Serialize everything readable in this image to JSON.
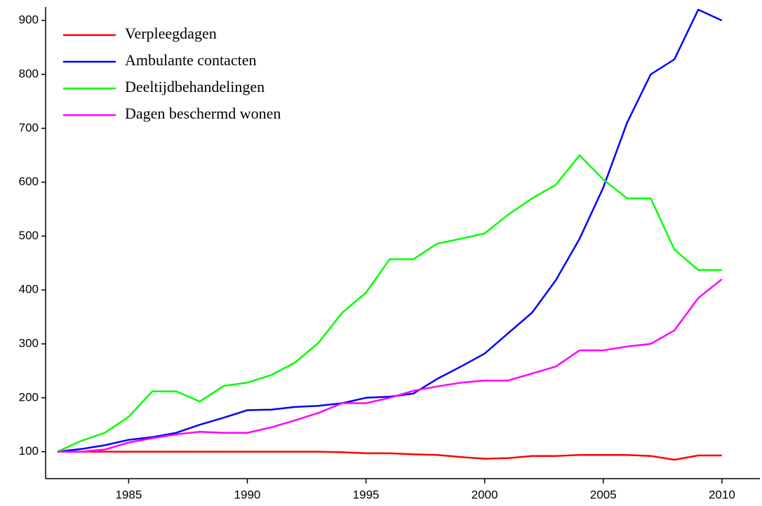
{
  "chart_data": {
    "type": "line",
    "x": [
      1982,
      1983,
      1984,
      1985,
      1986,
      1987,
      1988,
      1989,
      1990,
      1991,
      1992,
      1993,
      1994,
      1995,
      1996,
      1997,
      1998,
      1999,
      2000,
      2001,
      2002,
      2003,
      2004,
      2005,
      2006,
      2007,
      2008,
      2009,
      2010
    ],
    "series": [
      {
        "name": "Verpleegdagen",
        "color": "#ff0000",
        "values": [
          100,
          100,
          100,
          100,
          100,
          100,
          100,
          100,
          100,
          100,
          100,
          100,
          99,
          97,
          97,
          95,
          94,
          90,
          87,
          88,
          92,
          92,
          94,
          94,
          94,
          92,
          85,
          93,
          93
        ]
      },
      {
        "name": "Ambulante contacten",
        "color": "#0000ff",
        "values": [
          100,
          105,
          112,
          122,
          127,
          135,
          150,
          163,
          177,
          178,
          183,
          185,
          190,
          200,
          202,
          208,
          235,
          258,
          282,
          320,
          358,
          418,
          495,
          590,
          710,
          800,
          828,
          920,
          900
        ]
      },
      {
        "name": "Deeltijdbehandelingen",
        "color": "#00ff00",
        "values": [
          100,
          120,
          135,
          165,
          212,
          212,
          193,
          222,
          228,
          242,
          265,
          302,
          358,
          395,
          457,
          457,
          486,
          495,
          505,
          540,
          570,
          595,
          650,
          605,
          570,
          570,
          475,
          437,
          437
        ]
      },
      {
        "name": "Dagen beschermd wonen",
        "color": "#ff00ff",
        "values": [
          100,
          100,
          104,
          117,
          125,
          132,
          137,
          135,
          135,
          145,
          158,
          172,
          190,
          190,
          200,
          213,
          221,
          228,
          232,
          232,
          245,
          258,
          288,
          288,
          295,
          300,
          325,
          385,
          420
        ]
      }
    ],
    "xlim": [
      1981.5,
      2011.6
    ],
    "ylim": [
      50,
      925
    ],
    "xticks": [
      1985,
      1990,
      1995,
      2000,
      2005,
      2010
    ],
    "yticks": [
      100,
      200,
      300,
      400,
      500,
      600,
      700,
      800,
      900
    ],
    "legend": "upper left"
  }
}
